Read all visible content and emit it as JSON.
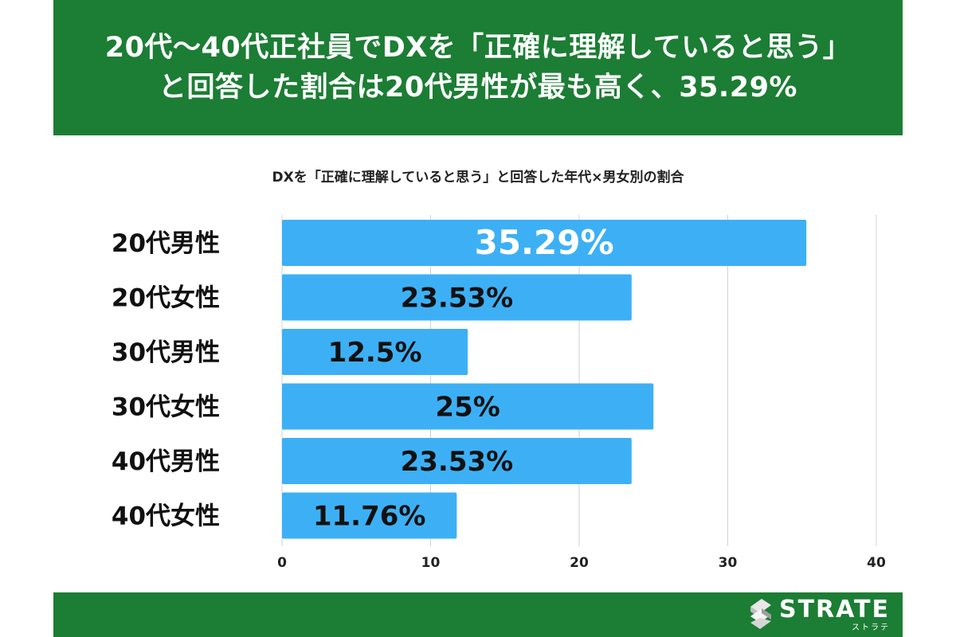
{
  "header": {
    "line1": "20代〜40代正社員でDXを「正確に理解していると思う」",
    "line2": "と回答した割合は20代男性が最も高く、35.29%"
  },
  "subtitle": "DXを「正確に理解していると思う」と回答した年代×男女別の割合",
  "colors": {
    "green": "#1c7d34",
    "bar": "#3db0f5"
  },
  "chart_data": {
    "type": "bar",
    "orientation": "horizontal",
    "title": "DXを「正確に理解していると思う」と回答した年代×男女別の割合",
    "categories": [
      "20代男性",
      "20代女性",
      "30代男性",
      "30代女性",
      "40代男性",
      "40代女性"
    ],
    "values": [
      35.29,
      23.53,
      12.5,
      25,
      23.53,
      11.76
    ],
    "labels": [
      "35.29%",
      "23.53%",
      "12.5%",
      "25%",
      "23.53%",
      "11.76%"
    ],
    "xlim": [
      0,
      40
    ],
    "xticks": [
      "0",
      "10",
      "20",
      "30",
      "40"
    ],
    "grid": true,
    "legend": "none"
  },
  "footer": {
    "logo_name": "STRATE",
    "logo_kana": "ストラテ"
  }
}
